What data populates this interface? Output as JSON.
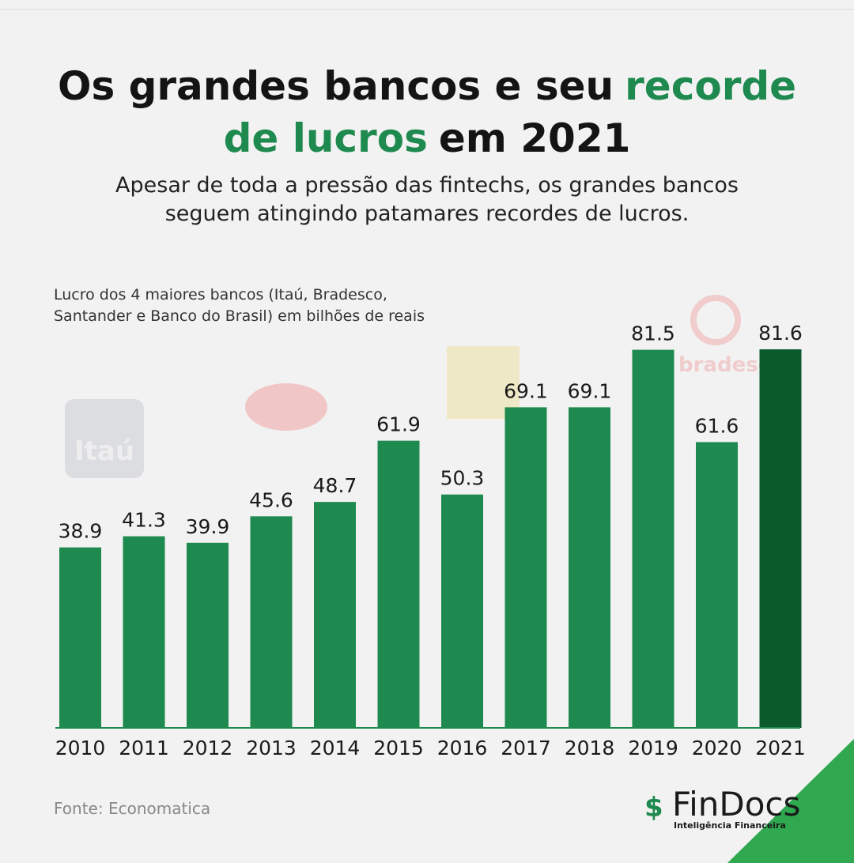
{
  "chart_data": {
    "type": "bar",
    "title": [
      "Os grandes bancos e seu",
      "recorde",
      "de lucros",
      "em 2021"
    ],
    "subtitle": [
      "Apesar de toda a pressão das fintechs, os grandes bancos",
      "seguem atingindo patamares recordes de lucros."
    ],
    "ylabel": [
      "Lucro dos 4 maiores bancos (Itaú, Bradesco,",
      "Santander e Banco do Brasil) em bilhões de reais"
    ],
    "categories": [
      "2010",
      "2011",
      "2012",
      "2013",
      "2014",
      "2015",
      "2016",
      "2017",
      "2018",
      "2019",
      "2020",
      "2021"
    ],
    "values": [
      38.9,
      41.3,
      39.9,
      45.6,
      48.7,
      61.9,
      50.3,
      69.1,
      69.1,
      81.5,
      61.6,
      81.6
    ],
    "colors": [
      "#1f8a4f",
      "#1f8a4f",
      "#1f8a4f",
      "#1f8a4f",
      "#1f8a4f",
      "#1f8a4f",
      "#1f8a4f",
      "#1f8a4f",
      "#1f8a4f",
      "#1f8a4f",
      "#1f8a4f",
      "#0a5a2b"
    ],
    "ylim": [
      0,
      81.6
    ],
    "watermarks": [
      "Itaú",
      "bradesco"
    ],
    "source": "Fonte: Economatica",
    "brand": "FinDocs",
    "brand_tagline": "Inteligência Financeira"
  }
}
